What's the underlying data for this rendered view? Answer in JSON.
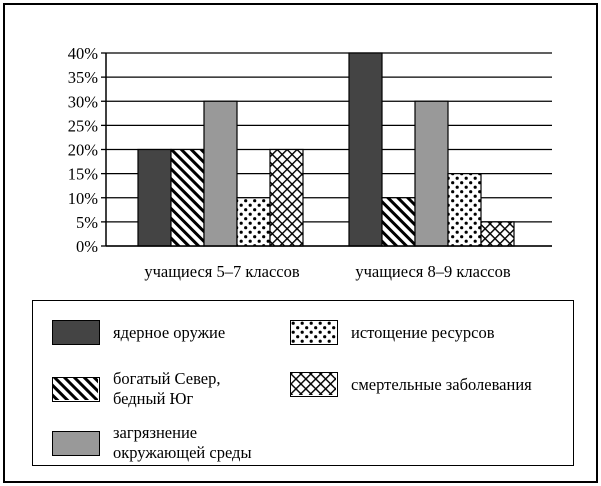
{
  "chart_data": {
    "type": "bar",
    "title": "",
    "xlabel": "",
    "ylabel": "",
    "ylim": [
      0,
      40
    ],
    "ytick_labels": [
      "0%",
      "5%",
      "10%",
      "15%",
      "20%",
      "25%",
      "30%",
      "35%",
      "40%"
    ],
    "categories": [
      "учащиеся 5–7 классов",
      "учащиеся 8–9 классов"
    ],
    "series": [
      {
        "name": "ядерное оружие",
        "pattern": "solid-dark",
        "color": "#444444",
        "values": [
          20,
          40
        ]
      },
      {
        "name": "богатый Север,\nбедный Юг",
        "pattern": "diagonal-hatch",
        "color": "#000000",
        "values": [
          20,
          10
        ]
      },
      {
        "name": "загрязнение\nокружающей среды",
        "pattern": "solid-gray",
        "color": "#999999",
        "values": [
          30,
          30
        ]
      },
      {
        "name": "истощение ресурсов",
        "pattern": "dots",
        "color": "#000000",
        "values": [
          10,
          15
        ]
      },
      {
        "name": "смертельные заболевания",
        "pattern": "crosshatch",
        "color": "#000000",
        "values": [
          20,
          5
        ]
      }
    ],
    "grid": "horizontal",
    "legend_placement": "bottom"
  }
}
